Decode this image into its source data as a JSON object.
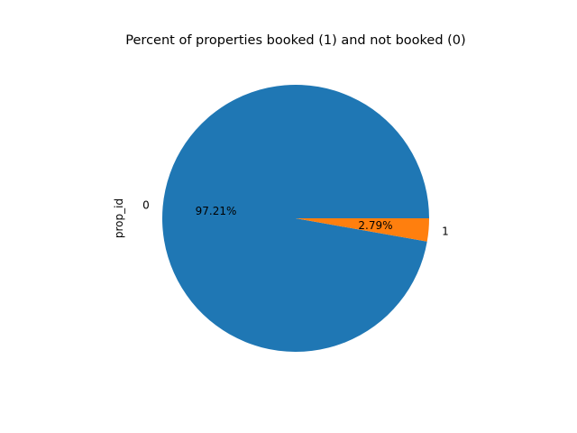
{
  "chart_data": {
    "type": "pie",
    "title": "Percent of properties booked (1) and not booked (0)",
    "ylabel": "prop_id",
    "slices": [
      {
        "label": "0",
        "value": 97.21,
        "pct_label": "97.21%",
        "color": "#1f77b4"
      },
      {
        "label": "1",
        "value": 2.79,
        "pct_label": "2.79%",
        "color": "#ff7f0e"
      }
    ]
  }
}
